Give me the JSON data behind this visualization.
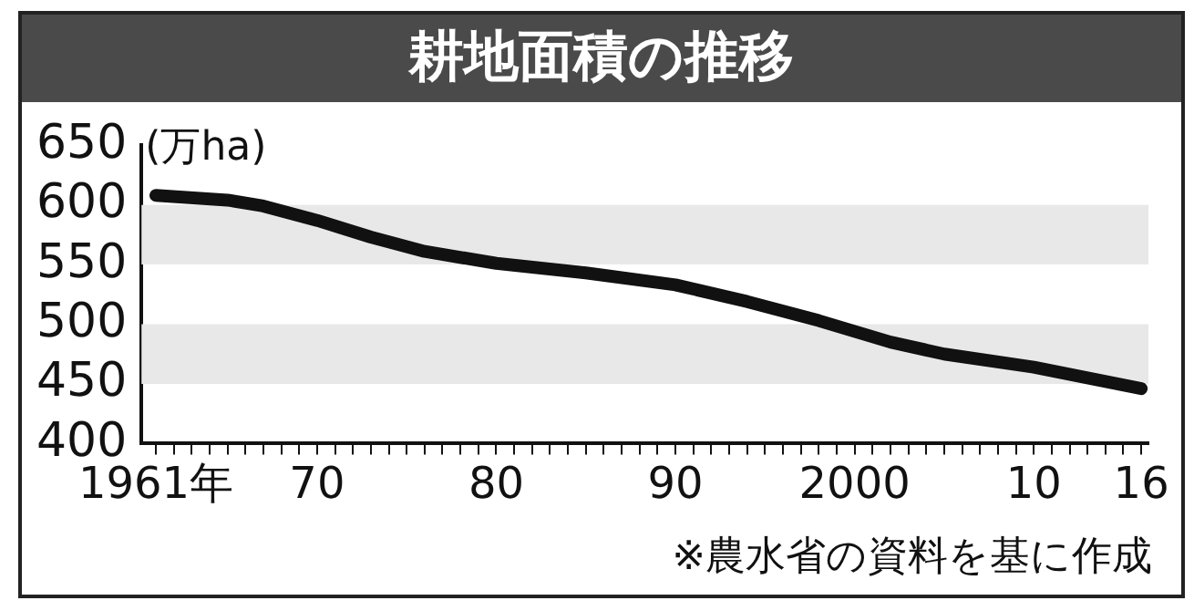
{
  "chart_data": {
    "type": "line",
    "title": "耕地面積の推移",
    "ylabel": "(万ha)",
    "annotations": [
      "※農水省の資料を基に作成"
    ],
    "x": [
      1961,
      1965,
      1967,
      1970,
      1973,
      1976,
      1980,
      1985,
      1990,
      1994,
      1998,
      2002,
      2005,
      2010,
      2013,
      2016
    ],
    "series": [
      {
        "color": "#111111",
        "values": [
          608,
          604,
          599,
          587,
          573,
          561,
          551,
          543,
          533,
          519,
          503,
          485,
          475,
          464,
          455,
          446
        ]
      }
    ],
    "xlim": [
      1960.2,
      2016.4
    ],
    "xticks": [
      {
        "value": 1961,
        "label": "1961年"
      },
      {
        "value": 1962,
        "label": null
      },
      {
        "value": 1963,
        "label": null
      },
      {
        "value": 1964,
        "label": null
      },
      {
        "value": 1965,
        "label": null
      },
      {
        "value": 1966,
        "label": null
      },
      {
        "value": 1967,
        "label": null
      },
      {
        "value": 1968,
        "label": null
      },
      {
        "value": 1969,
        "label": null
      },
      {
        "value": 1970,
        "label": "70"
      },
      {
        "value": 1971,
        "label": null
      },
      {
        "value": 1972,
        "label": null
      },
      {
        "value": 1973,
        "label": null
      },
      {
        "value": 1974,
        "label": null
      },
      {
        "value": 1975,
        "label": null
      },
      {
        "value": 1976,
        "label": null
      },
      {
        "value": 1977,
        "label": null
      },
      {
        "value": 1978,
        "label": null
      },
      {
        "value": 1979,
        "label": null
      },
      {
        "value": 1980,
        "label": "80"
      },
      {
        "value": 1981,
        "label": null
      },
      {
        "value": 1982,
        "label": null
      },
      {
        "value": 1983,
        "label": null
      },
      {
        "value": 1984,
        "label": null
      },
      {
        "value": 1985,
        "label": null
      },
      {
        "value": 1986,
        "label": null
      },
      {
        "value": 1987,
        "label": null
      },
      {
        "value": 1988,
        "label": null
      },
      {
        "value": 1989,
        "label": null
      },
      {
        "value": 1990,
        "label": "90"
      },
      {
        "value": 1991,
        "label": null
      },
      {
        "value": 1992,
        "label": null
      },
      {
        "value": 1993,
        "label": null
      },
      {
        "value": 1994,
        "label": null
      },
      {
        "value": 1995,
        "label": null
      },
      {
        "value": 1996,
        "label": null
      },
      {
        "value": 1997,
        "label": null
      },
      {
        "value": 1998,
        "label": null
      },
      {
        "value": 1999,
        "label": null
      },
      2000,
      {
        "value": 2001,
        "label": null
      },
      {
        "value": 2002,
        "label": null
      },
      {
        "value": 2003,
        "label": null
      },
      {
        "value": 2004,
        "label": null
      },
      {
        "value": 2005,
        "label": null
      },
      {
        "value": 2006,
        "label": null
      },
      {
        "value": 2007,
        "label": null
      },
      {
        "value": 2008,
        "label": null
      },
      {
        "value": 2009,
        "label": null
      },
      {
        "value": 2010,
        "label": "10"
      },
      {
        "value": 2011,
        "label": null
      },
      {
        "value": 2012,
        "label": null
      },
      {
        "value": 2013,
        "label": null
      },
      {
        "value": 2014,
        "label": null
      },
      {
        "value": 2015,
        "label": null
      },
      {
        "value": 2016,
        "label": "16"
      }
    ],
    "ylim": [
      400,
      650
    ],
    "yticks": [
      400,
      450,
      500,
      550,
      600,
      650
    ],
    "bands": [
      {
        "axis": "y",
        "from": 550,
        "to": 600,
        "color": "#e8e8e8"
      },
      {
        "axis": "y",
        "from": 450,
        "to": 500,
        "color": "#e8e8e8"
      }
    ],
    "grid": false,
    "legend": false,
    "marker": "none",
    "line_style": "solid"
  }
}
